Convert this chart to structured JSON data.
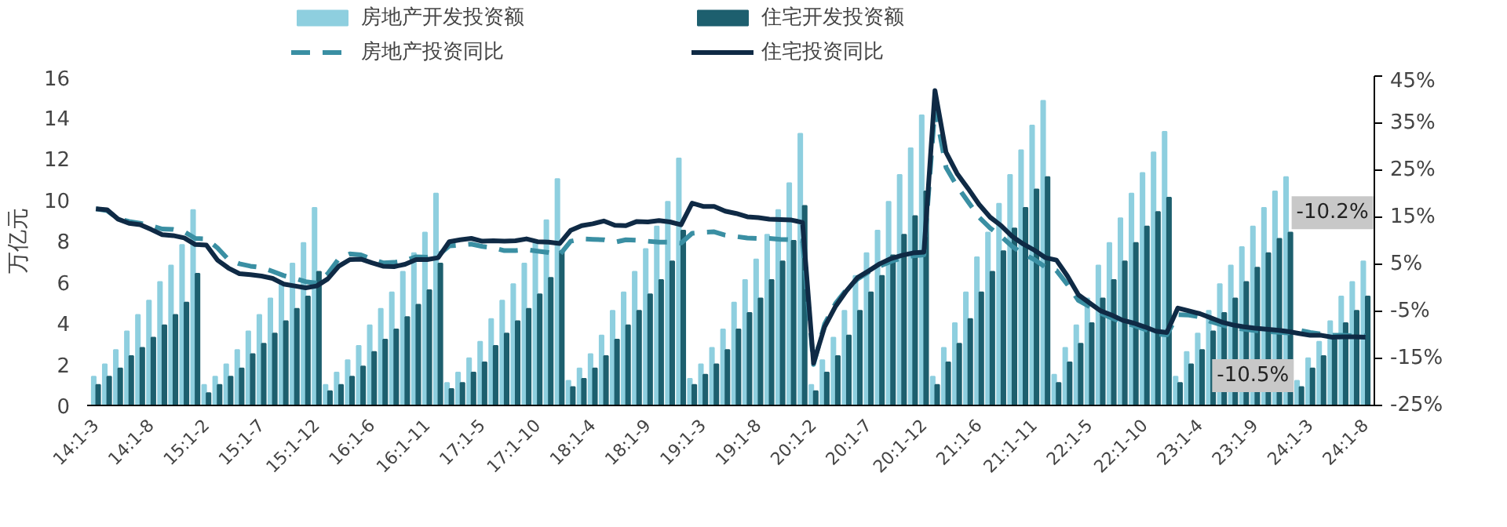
{
  "chart_data": {
    "type": "bar",
    "ylabel": "万亿元",
    "legend": "top",
    "grid": false,
    "categories": [
      "14:1-3",
      null,
      null,
      null,
      null,
      "14:1-8",
      null,
      null,
      null,
      null,
      "15:1-2",
      null,
      null,
      null,
      null,
      "15:1-7",
      null,
      null,
      null,
      null,
      "15:1-12",
      null,
      null,
      null,
      null,
      "16:1-6",
      null,
      null,
      null,
      null,
      "16:1-11",
      null,
      null,
      null,
      null,
      "17:1-5",
      null,
      null,
      null,
      null,
      "17:1-10",
      null,
      null,
      null,
      null,
      "18:1-4",
      null,
      null,
      null,
      null,
      "18:1-9",
      null,
      null,
      null,
      null,
      "19:1-3",
      null,
      null,
      null,
      null,
      "19:1-8",
      null,
      null,
      null,
      null,
      "20:1-2",
      null,
      null,
      null,
      null,
      "20:1-7",
      null,
      null,
      null,
      null,
      "20:1-12",
      null,
      null,
      null,
      null,
      "21:1-6",
      null,
      null,
      null,
      null,
      "21:1-11",
      null,
      null,
      null,
      null,
      "22:1-5",
      null,
      null,
      null,
      null,
      "22:1-10",
      null,
      null,
      null,
      null,
      "23:1-4",
      null,
      null,
      null,
      null,
      "23:1-9",
      null,
      null,
      null,
      null,
      "24:1-3",
      null,
      null,
      null,
      null,
      "24:1-8"
    ],
    "ylim": [
      0,
      16
    ],
    "yticks": [
      0,
      2,
      4,
      6,
      8,
      10,
      12,
      14,
      16
    ],
    "y2lim": [
      -25,
      45
    ],
    "y2ticks": [
      {
        "value": -25,
        "label": "-25%"
      },
      {
        "value": -15,
        "label": "-15%"
      },
      {
        "value": -5,
        "label": "-5%"
      },
      {
        "value": 5,
        "label": "5%"
      },
      {
        "value": 15,
        "label": "15%"
      },
      {
        "value": 25,
        "label": "25%"
      },
      {
        "value": 35,
        "label": "35%"
      },
      {
        "value": 45,
        "label": "45%"
      }
    ],
    "series": [
      {
        "name": "房地产开发投资额",
        "color": "#8ecfdf",
        "values": [
          1.4,
          2.0,
          2.7,
          3.6,
          4.4,
          5.1,
          6.0,
          6.8,
          7.8,
          9.5,
          1.0,
          1.4,
          2.0,
          2.7,
          3.6,
          4.4,
          5.2,
          6.0,
          6.9,
          7.9,
          9.6,
          1.0,
          1.6,
          2.2,
          2.9,
          3.9,
          4.7,
          5.5,
          6.5,
          7.4,
          8.4,
          10.3,
          1.1,
          1.6,
          2.3,
          3.1,
          4.2,
          5.1,
          5.9,
          6.9,
          7.9,
          9.0,
          11.0,
          1.2,
          1.8,
          2.5,
          3.4,
          4.6,
          5.5,
          6.5,
          7.6,
          8.7,
          9.9,
          12.0,
          1.3,
          2.0,
          2.8,
          3.7,
          5.0,
          6.1,
          7.1,
          8.3,
          9.5,
          10.8,
          13.2,
          1.0,
          2.2,
          3.3,
          4.6,
          6.3,
          7.4,
          8.5,
          9.9,
          11.2,
          12.5,
          14.1,
          1.4,
          2.8,
          4.0,
          5.5,
          7.2,
          8.4,
          9.8,
          11.2,
          12.4,
          13.6,
          14.8,
          1.5,
          2.8,
          3.9,
          5.2,
          6.8,
          7.9,
          9.1,
          10.3,
          11.3,
          12.3,
          13.3,
          1.4,
          2.6,
          3.5,
          4.6,
          5.9,
          6.8,
          7.7,
          8.7,
          9.6,
          10.4,
          11.1,
          1.2,
          2.3,
          3.1,
          4.1,
          5.3,
          6.0,
          7.0
        ]
      },
      {
        "name": "住宅开发投资额",
        "color": "#1d5f6e",
        "values": [
          1.0,
          1.4,
          1.8,
          2.4,
          2.8,
          3.3,
          3.9,
          4.4,
          5.0,
          6.4,
          0.6,
          1.0,
          1.4,
          1.8,
          2.5,
          3.0,
          3.5,
          4.1,
          4.7,
          5.3,
          6.5,
          0.7,
          1.0,
          1.4,
          1.9,
          2.6,
          3.2,
          3.7,
          4.3,
          4.9,
          5.6,
          6.9,
          0.8,
          1.1,
          1.6,
          2.1,
          2.9,
          3.5,
          4.1,
          4.7,
          5.4,
          6.2,
          7.5,
          0.9,
          1.3,
          1.8,
          2.4,
          3.2,
          3.9,
          4.6,
          5.4,
          6.1,
          7.0,
          8.5,
          1.0,
          1.5,
          2.0,
          2.7,
          3.7,
          4.5,
          5.2,
          6.1,
          7.0,
          8.0,
          9.7,
          0.7,
          1.6,
          2.4,
          3.4,
          4.6,
          5.5,
          6.3,
          7.3,
          8.3,
          9.2,
          10.4,
          1.0,
          2.1,
          3.0,
          4.2,
          5.5,
          6.5,
          7.5,
          8.6,
          9.6,
          10.5,
          11.1,
          1.1,
          2.1,
          3.0,
          4.0,
          5.2,
          6.1,
          7.0,
          7.9,
          8.7,
          9.4,
          10.1,
          1.1,
          2.0,
          2.7,
          3.6,
          4.5,
          5.2,
          6.0,
          6.7,
          7.4,
          8.1,
          8.4,
          0.9,
          1.8,
          2.4,
          3.2,
          4.0,
          4.6,
          5.3
        ]
      },
      {
        "name": "房地产投资同比",
        "type": "line",
        "axis": "y2",
        "line_style": "dashed",
        "color": "#3a8fa3",
        "values": [
          16.8,
          16.4,
          14.7,
          14.1,
          13.7,
          13.2,
          12.5,
          12.4,
          11.9,
          10.5,
          10.4,
          8.5,
          6.0,
          5.1,
          4.6,
          4.3,
          3.5,
          2.6,
          2.0,
          1.3,
          1.0,
          3.0,
          6.2,
          7.2,
          7.0,
          6.1,
          5.3,
          5.4,
          5.8,
          6.6,
          6.5,
          6.9,
          8.9,
          9.1,
          9.3,
          8.8,
          8.5,
          7.9,
          7.9,
          8.1,
          7.8,
          7.5,
          7.0,
          9.9,
          10.4,
          10.3,
          10.2,
          9.7,
          10.2,
          10.1,
          9.9,
          9.7,
          9.7,
          9.5,
          11.6,
          11.8,
          11.9,
          11.2,
          10.9,
          10.6,
          10.5,
          10.5,
          10.3,
          10.2,
          9.9,
          -16.3,
          -7.7,
          -3.3,
          -0.3,
          1.9,
          3.4,
          4.6,
          5.6,
          6.3,
          6.8,
          7.0,
          38.3,
          25.6,
          21.6,
          18.3,
          15.0,
          12.7,
          10.9,
          8.8,
          7.2,
          6.0,
          4.4,
          3.7,
          0.7,
          -2.7,
          -4.0,
          -5.4,
          -6.4,
          -7.4,
          -8.0,
          -8.8,
          -9.8,
          -10.0,
          -5.7,
          -5.8,
          -6.2,
          -7.2,
          -7.9,
          -8.5,
          -8.8,
          -9.1,
          -9.3,
          -9.4,
          -9.6,
          -9.0,
          -9.5,
          -9.8,
          -10.1,
          -10.1,
          -10.2,
          -10.2
        ]
      },
      {
        "name": "住宅投资同比",
        "type": "line",
        "axis": "y2",
        "line_style": "solid",
        "color": "#0f2a45",
        "values": [
          16.8,
          16.6,
          14.6,
          13.7,
          13.4,
          12.4,
          11.3,
          11.1,
          10.6,
          9.2,
          9.1,
          5.9,
          4.2,
          3.0,
          2.8,
          2.5,
          2.0,
          0.8,
          0.4,
          0.0,
          0.4,
          1.9,
          4.6,
          6.0,
          6.1,
          5.3,
          4.6,
          4.5,
          5.0,
          6.0,
          6.0,
          6.4,
          9.8,
          10.2,
          10.5,
          9.9,
          10.0,
          9.9,
          10.0,
          10.4,
          9.8,
          9.7,
          9.4,
          12.2,
          13.2,
          13.6,
          14.2,
          13.3,
          13.2,
          14.1,
          14.0,
          14.3,
          14.0,
          13.4,
          18.0,
          17.3,
          17.3,
          16.3,
          15.8,
          15.1,
          14.9,
          14.6,
          14.5,
          14.4,
          13.9,
          -16.0,
          -8.3,
          -3.9,
          -0.6,
          2.2,
          3.6,
          5.1,
          6.2,
          6.9,
          7.4,
          7.6,
          41.9,
          28.8,
          24.3,
          21.1,
          17.7,
          15.0,
          13.2,
          10.9,
          9.3,
          8.0,
          6.4,
          5.9,
          2.5,
          -1.5,
          -3.2,
          -4.9,
          -5.8,
          -6.9,
          -7.5,
          -8.3,
          -9.2,
          -9.5,
          -4.3,
          -4.9,
          -5.5,
          -6.4,
          -7.3,
          -7.9,
          -8.3,
          -8.6,
          -8.8,
          -9.0,
          -9.3,
          -9.7,
          -10.1,
          -10.1,
          -10.5,
          -10.4,
          -10.4,
          -10.5
        ]
      }
    ],
    "annotations": [
      "-10.2%",
      "-10.5%"
    ]
  }
}
